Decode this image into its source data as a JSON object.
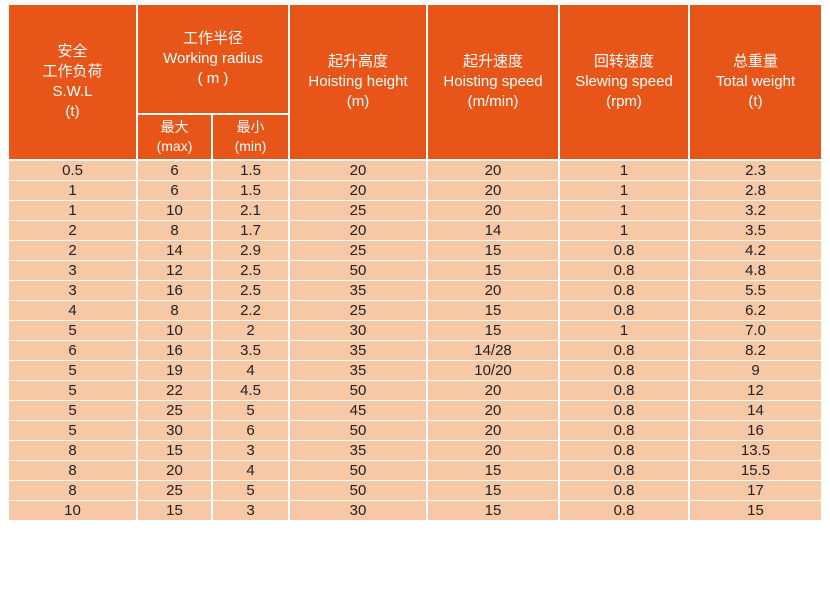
{
  "headers": {
    "swl": [
      "安全",
      "工作负荷",
      "S.W.L",
      "(t)"
    ],
    "radius": [
      "工作半径",
      "Working radius",
      "( m )"
    ],
    "radius_max": [
      "最大",
      "(max)"
    ],
    "radius_min": [
      "最小",
      "(min)"
    ],
    "hoisting_height": [
      "起升高度",
      "Hoisting height",
      "(m)"
    ],
    "hoisting_speed": [
      "起升速度",
      "Hoisting speed",
      "(m/min)"
    ],
    "slewing_speed": [
      "回转速度",
      "Slewing speed",
      "(rpm)"
    ],
    "total_weight": [
      "总重量",
      "Total weight",
      "(t)"
    ]
  },
  "colors": {
    "header_bg": "#e85518",
    "row_bg": "#f6c8a6"
  },
  "rows": [
    [
      "0.5",
      "6",
      "1.5",
      "20",
      "20",
      "1",
      "2.3"
    ],
    [
      "1",
      "6",
      "1.5",
      "20",
      "20",
      "1",
      "2.8"
    ],
    [
      "1",
      "10",
      "2.1",
      "25",
      "20",
      "1",
      "3.2"
    ],
    [
      "2",
      "8",
      "1.7",
      "20",
      "14",
      "1",
      "3.5"
    ],
    [
      "2",
      "14",
      "2.9",
      "25",
      "15",
      "0.8",
      "4.2"
    ],
    [
      "3",
      "12",
      "2.5",
      "50",
      "15",
      "0.8",
      "4.8"
    ],
    [
      "3",
      "16",
      "2.5",
      "35",
      "20",
      "0.8",
      "5.5"
    ],
    [
      "4",
      "8",
      "2.2",
      "25",
      "15",
      "0.8",
      "6.2"
    ],
    [
      "5",
      "10",
      "2",
      "30",
      "15",
      "1",
      "7.0"
    ],
    [
      "6",
      "16",
      "3.5",
      "35",
      "14/28",
      "0.8",
      "8.2"
    ],
    [
      "5",
      "19",
      "4",
      "35",
      "10/20",
      "0.8",
      "9"
    ],
    [
      "5",
      "22",
      "4.5",
      "50",
      "20",
      "0.8",
      "12"
    ],
    [
      "5",
      "25",
      "5",
      "45",
      "20",
      "0.8",
      "14"
    ],
    [
      "5",
      "30",
      "6",
      "50",
      "20",
      "0.8",
      "16"
    ],
    [
      "8",
      "15",
      "3",
      "35",
      "20",
      "0.8",
      "13.5"
    ],
    [
      "8",
      "20",
      "4",
      "50",
      "15",
      "0.8",
      "15.5"
    ],
    [
      "8",
      "25",
      "5",
      "50",
      "15",
      "0.8",
      "17"
    ],
    [
      "10",
      "15",
      "3",
      "30",
      "15",
      "0.8",
      "15"
    ]
  ]
}
